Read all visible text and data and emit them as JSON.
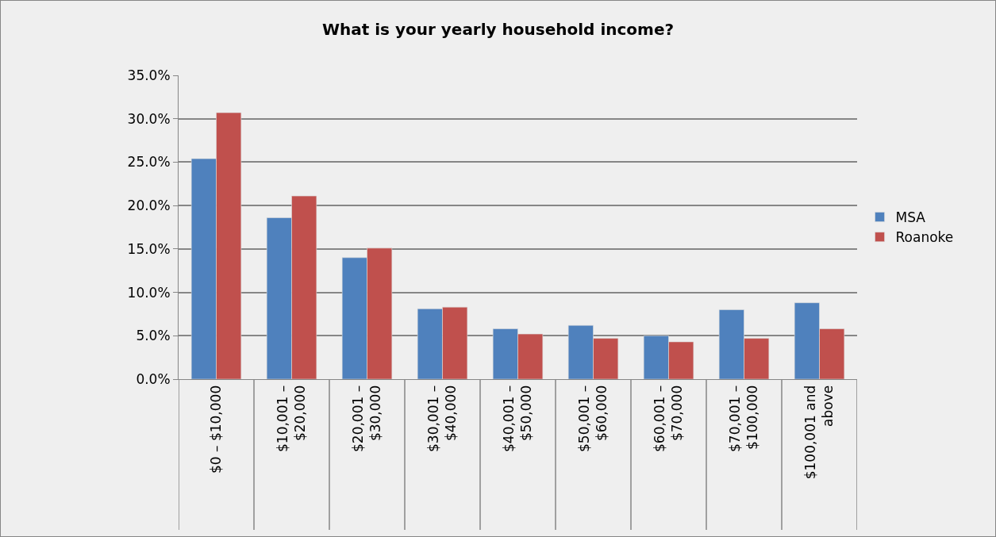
{
  "chart_data": {
    "type": "bar",
    "title": "What is your yearly household income?",
    "categories": [
      "$0 – $10,000",
      "$10,001 – $20,000",
      "$20,001 – $30,000",
      "$30,001 – $40,000",
      "$40,001 – $50,000",
      "$50,001 – $60,000",
      "$60,001 – $70,000",
      "$70,001 – $100,000",
      "$100,001 and above"
    ],
    "series": [
      {
        "name": "MSA",
        "color": "#4f81bd",
        "values": [
          25.4,
          18.6,
          14.0,
          8.1,
          5.8,
          6.2,
          5.0,
          8.0,
          8.8
        ]
      },
      {
        "name": "Roanoke",
        "color": "#c0504d",
        "values": [
          30.7,
          21.1,
          15.1,
          8.3,
          5.2,
          4.7,
          4.3,
          4.7,
          5.8
        ]
      }
    ],
    "ylim": [
      0,
      35
    ],
    "yticks": [
      {
        "value": 0,
        "label": "0.0%"
      },
      {
        "value": 5,
        "label": "5.0%"
      },
      {
        "value": 10,
        "label": "10.0%"
      },
      {
        "value": 15,
        "label": "15.0%"
      },
      {
        "value": 20,
        "label": "20.0%"
      },
      {
        "value": 25,
        "label": "25.0%"
      },
      {
        "value": 30,
        "label": "30.0%"
      },
      {
        "value": 35,
        "label": "35.0%"
      }
    ],
    "grid": "y",
    "legend": "right"
  }
}
